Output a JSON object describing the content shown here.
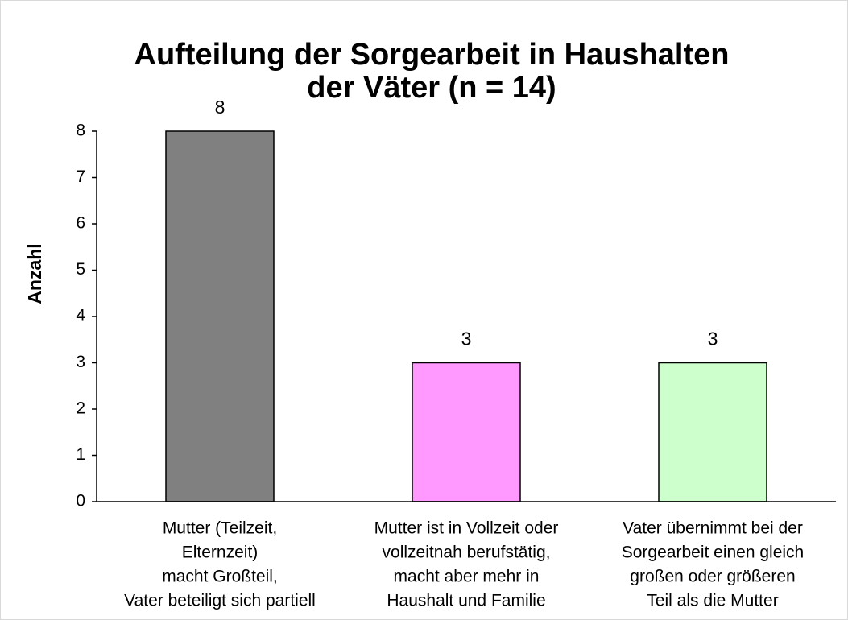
{
  "chart_data": {
    "type": "bar",
    "title": [
      "Aufteilung der Sorgearbeit in Haushalten",
      "der Väter (n = 14)"
    ],
    "ylabel": "Anzahl",
    "categories": [
      [
        "Mutter (Teilzeit,",
        "Elternzeit)",
        "macht Großteil,",
        "Vater beteiligt sich partiell"
      ],
      [
        "Mutter ist in Vollzeit oder",
        "vollzeitnah berufstätig,",
        "macht aber mehr in",
        "Haushalt und Familie"
      ],
      [
        "Vater übernimmt bei der",
        "Sorgearbeit einen gleich",
        "großen oder größeren",
        "Teil als die Mutter"
      ]
    ],
    "values": [
      8,
      3,
      3
    ],
    "colors": [
      "#808080",
      "#ff99ff",
      "#ccffcc"
    ],
    "ylim": [
      0,
      8
    ],
    "yticks": [
      0,
      1,
      2,
      3,
      4,
      5,
      6,
      7,
      8
    ],
    "grid": false
  }
}
